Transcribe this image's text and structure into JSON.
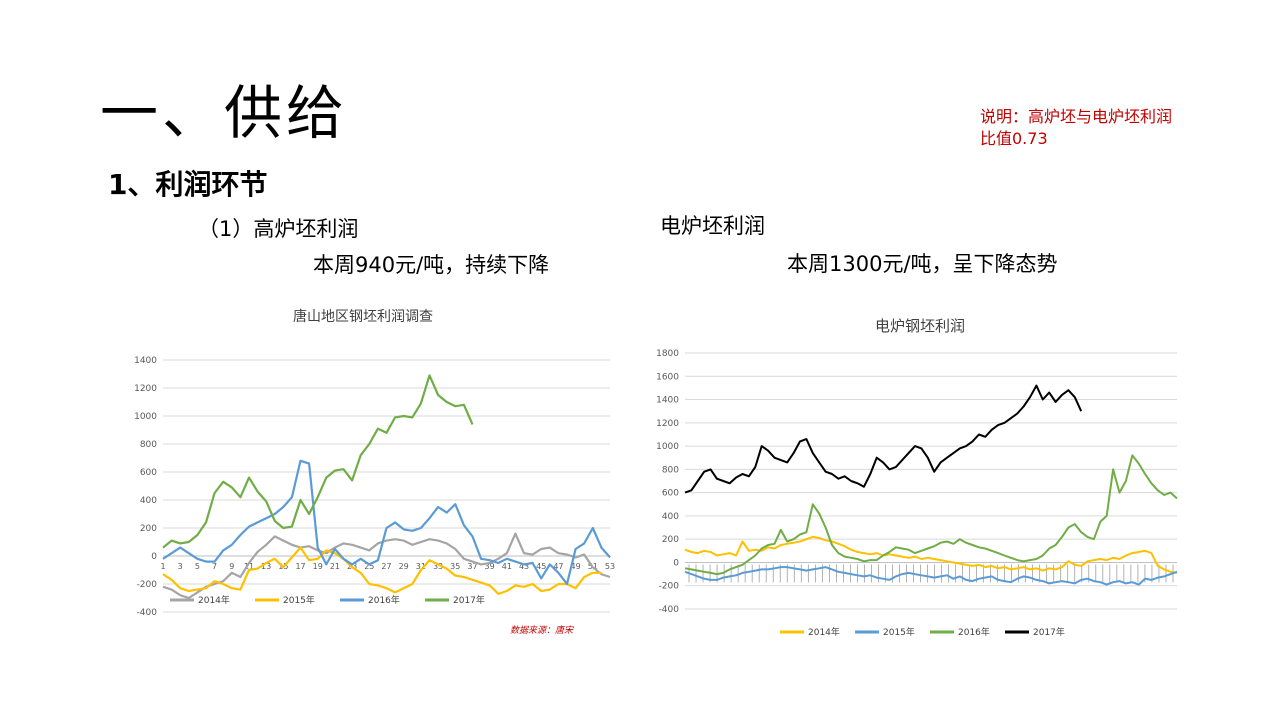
{
  "page": {
    "title": "一、供给",
    "section": "1、利润环节",
    "note_line1": "说明：高炉坯与电炉坯利润",
    "note_line2": "比值0.73",
    "blast_furnace": {
      "heading": "（1）高炉坯利润",
      "summary": "本周940元/吨，持续下降"
    },
    "electric_arc": {
      "heading": "电炉坯利润",
      "summary": "本周1300元/吨，呈下降态势"
    }
  },
  "chart_data": [
    {
      "type": "line",
      "title": "唐山地区钢坯利润调查",
      "source_note": "数据来源：唐宋",
      "ylim": [
        -400,
        1400
      ],
      "yticks": [
        -400,
        -200,
        0,
        200,
        400,
        600,
        800,
        1000,
        1200,
        1400
      ],
      "xlabel_unit": "week",
      "xticks": [
        "1",
        "3",
        "5",
        "7",
        "9",
        "11",
        "13",
        "15",
        "17",
        "19",
        "21",
        "23",
        "25",
        "27",
        "29",
        "31",
        "33",
        "35",
        "37",
        "39",
        "41",
        "43",
        "45",
        "47",
        "49",
        "51",
        "53"
      ],
      "legend": "bottom-inside",
      "grid": true,
      "series": [
        {
          "name": "2014年",
          "color": "#a5a5a5",
          "values": [
            -220,
            -240,
            -280,
            -300,
            -260,
            -220,
            -200,
            -180,
            -120,
            -150,
            -50,
            30,
            80,
            140,
            110,
            80,
            60,
            70,
            40,
            20,
            60,
            90,
            80,
            60,
            40,
            90,
            110,
            120,
            110,
            80,
            100,
            120,
            110,
            90,
            50,
            -20,
            -40,
            -60,
            -50,
            -20,
            20,
            160,
            20,
            10,
            50,
            60,
            20,
            10,
            -10,
            10,
            -80,
            -130,
            -150
          ]
        },
        {
          "name": "2015年",
          "color": "#ffc000",
          "values": [
            -130,
            -170,
            -230,
            -250,
            -240,
            -230,
            -180,
            -200,
            -230,
            -240,
            -100,
            -90,
            -50,
            -20,
            -80,
            -10,
            60,
            -30,
            -20,
            40,
            20,
            -20,
            -80,
            -120,
            -200,
            -210,
            -230,
            -260,
            -230,
            -200,
            -100,
            -30,
            -60,
            -90,
            -140,
            -150,
            -170,
            -190,
            -210,
            -270,
            -250,
            -210,
            -220,
            -200,
            -250,
            -240,
            -200,
            -200,
            -230,
            -150,
            -120,
            -120
          ]
        },
        {
          "name": "2016年",
          "color": "#5b9bd5",
          "values": [
            -20,
            20,
            60,
            20,
            -20,
            -40,
            -40,
            40,
            80,
            150,
            210,
            240,
            270,
            300,
            350,
            420,
            680,
            660,
            60,
            -60,
            50,
            -20,
            -60,
            -20,
            -60,
            -30,
            200,
            240,
            190,
            180,
            200,
            270,
            350,
            310,
            370,
            220,
            140,
            -20,
            -30,
            -50,
            -20,
            -40,
            -60,
            -50,
            -160,
            -60,
            -120,
            -200,
            50,
            90,
            200,
            60,
            -10
          ]
        },
        {
          "name": "2017年",
          "color": "#70ad47",
          "values": [
            60,
            110,
            90,
            100,
            150,
            240,
            450,
            530,
            490,
            420,
            560,
            460,
            390,
            250,
            200,
            210,
            400,
            300,
            420,
            560,
            610,
            620,
            540,
            720,
            800,
            910,
            880,
            990,
            1000,
            990,
            1090,
            1290,
            1150,
            1100,
            1070,
            1080,
            940
          ]
        }
      ]
    },
    {
      "type": "line",
      "title": "电炉钢坯利润",
      "ylim": [
        -400,
        1800
      ],
      "yticks": [
        -400,
        -200,
        0,
        200,
        400,
        600,
        800,
        1000,
        1200,
        1400,
        1600,
        1800
      ],
      "x_label_note": "dates (illegible rotated labels)",
      "legend": "bottom",
      "grid": true,
      "series": [
        {
          "name": "2014年",
          "color": "#ffc000",
          "values": [
            110,
            90,
            80,
            100,
            90,
            60,
            70,
            80,
            60,
            180,
            100,
            110,
            100,
            130,
            120,
            150,
            160,
            170,
            180,
            200,
            220,
            210,
            190,
            180,
            160,
            140,
            110,
            90,
            80,
            70,
            80,
            60,
            70,
            60,
            50,
            40,
            50,
            30,
            40,
            30,
            20,
            10,
            0,
            -10,
            -20,
            -30,
            -20,
            -40,
            -30,
            -50,
            -40,
            -60,
            -50,
            -40,
            -60,
            -50,
            -70,
            -50,
            -60,
            -40,
            10,
            -20,
            -30,
            10,
            20,
            30,
            20,
            40,
            30,
            60,
            80,
            90,
            100,
            80,
            -30,
            -60,
            -80,
            -90
          ]
        },
        {
          "name": "2015年",
          "color": "#5b9bd5",
          "values": [
            -80,
            -100,
            -120,
            -140,
            -150,
            -150,
            -130,
            -120,
            -110,
            -90,
            -80,
            -70,
            -60,
            -60,
            -50,
            -40,
            -40,
            -50,
            -60,
            -70,
            -60,
            -50,
            -40,
            -60,
            -80,
            -90,
            -100,
            -110,
            -120,
            -110,
            -130,
            -140,
            -150,
            -120,
            -100,
            -90,
            -100,
            -110,
            -120,
            -130,
            -120,
            -110,
            -140,
            -120,
            -150,
            -160,
            -140,
            -130,
            -120,
            -150,
            -160,
            -170,
            -140,
            -120,
            -130,
            -150,
            -160,
            -180,
            -170,
            -160,
            -170,
            -180,
            -150,
            -140,
            -160,
            -170,
            -190,
            -170,
            -160,
            -180,
            -170,
            -190,
            -140,
            -150,
            -130,
            -120,
            -100,
            -80
          ]
        },
        {
          "name": "2016年",
          "color": "#70ad47",
          "values": [
            -50,
            -60,
            -70,
            -80,
            -90,
            -100,
            -90,
            -60,
            -40,
            -20,
            20,
            60,
            120,
            150,
            160,
            280,
            180,
            200,
            240,
            260,
            500,
            420,
            300,
            150,
            80,
            50,
            40,
            30,
            10,
            20,
            20,
            60,
            90,
            130,
            120,
            110,
            80,
            100,
            120,
            140,
            170,
            180,
            160,
            200,
            170,
            150,
            130,
            120,
            100,
            80,
            60,
            40,
            20,
            10,
            20,
            30,
            60,
            120,
            150,
            220,
            300,
            330,
            260,
            220,
            200,
            350,
            400,
            800,
            600,
            700,
            920,
            850,
            760,
            680,
            620,
            580,
            600,
            550
          ]
        },
        {
          "name": "2017年",
          "color": "#000000",
          "values": [
            600,
            620,
            700,
            780,
            800,
            720,
            700,
            680,
            730,
            760,
            740,
            820,
            1000,
            960,
            900,
            880,
            860,
            940,
            1040,
            1060,
            940,
            860,
            780,
            760,
            720,
            740,
            700,
            680,
            650,
            760,
            900,
            860,
            800,
            820,
            880,
            940,
            1000,
            980,
            900,
            780,
            860,
            900,
            940,
            980,
            1000,
            1040,
            1100,
            1080,
            1140,
            1180,
            1200,
            1240,
            1280,
            1340,
            1420,
            1520,
            1400,
            1460,
            1380,
            1440,
            1480,
            1420,
            1300
          ]
        }
      ]
    }
  ]
}
